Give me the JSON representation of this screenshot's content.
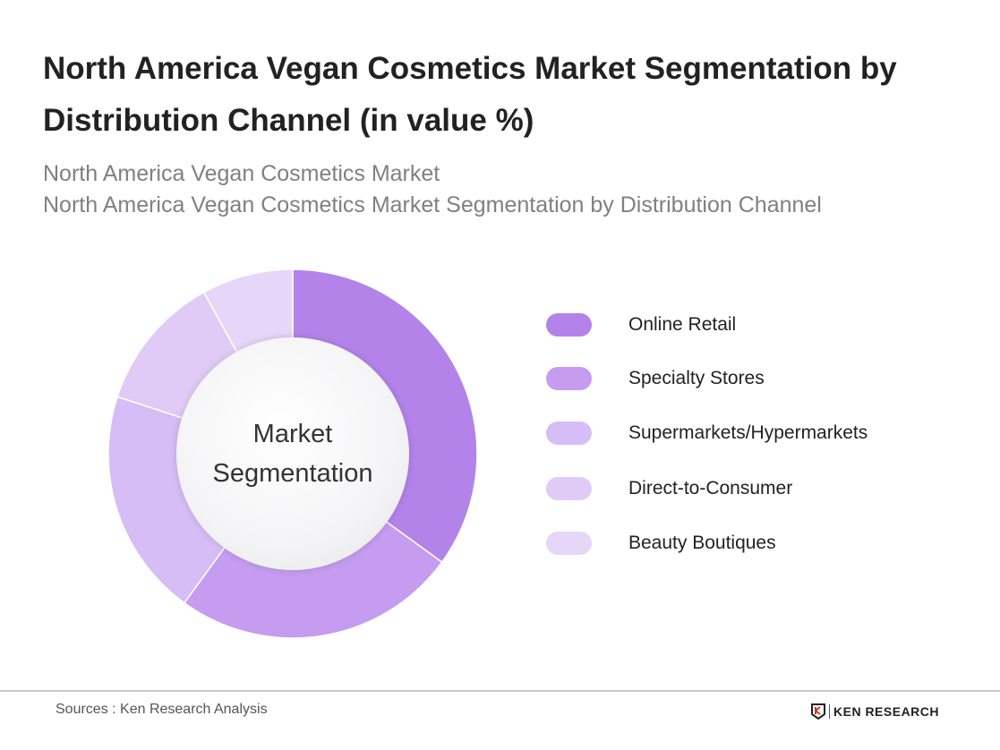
{
  "title": "North America Vegan Cosmetics Market Segmentation by Distribution Channel (in value %)",
  "subtitle_lines": [
    "North America Vegan Cosmetics Market",
    "North America Vegan Cosmetics Market Segmentation by Distribution Channel"
  ],
  "center_label": [
    "Market",
    "Segmentation"
  ],
  "chart_data": {
    "type": "pie",
    "variant": "donut",
    "title": "North America Vegan Cosmetics Market Segmentation by Distribution Channel (in value %)",
    "categories": [
      "Online Retail",
      "Specialty Stores",
      "Supermarkets/Hypermarkets",
      "Direct-to-Consumer",
      "Beauty Boutiques"
    ],
    "values": [
      35,
      25,
      20,
      12,
      8
    ],
    "colors": [
      "#b383ea",
      "#c59cef",
      "#d6bdf5",
      "#e0cbf7",
      "#e6d6f8"
    ],
    "start_angle": "top, clockwise",
    "legend_placement": "right"
  },
  "footer": {
    "sources": "Sources : Ken Research Analysis",
    "logo_text": "KEN RESEARCH"
  }
}
